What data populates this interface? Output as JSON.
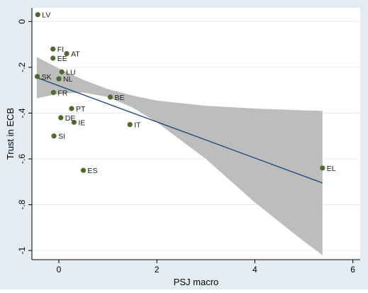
{
  "chart_data": {
    "type": "scatter",
    "title": "",
    "xlabel": "PSJ macro",
    "ylabel": "Trust in ECB",
    "xlim": [
      -0.55,
      6.15
    ],
    "ylim": [
      -1.04,
      0.06
    ],
    "x_ticks": [
      {
        "value": 0,
        "label": "0"
      },
      {
        "value": 2,
        "label": "2"
      },
      {
        "value": 4,
        "label": "4"
      },
      {
        "value": 6,
        "label": "6"
      }
    ],
    "y_ticks": [
      {
        "value": 0,
        "label": "0"
      },
      {
        "value": -0.2,
        "label": "-.2"
      },
      {
        "value": -0.4,
        "label": "-.4"
      },
      {
        "value": -0.6,
        "label": "-.6"
      },
      {
        "value": -0.8,
        "label": "-.8"
      },
      {
        "value": -1,
        "label": "-1"
      }
    ],
    "grid": "horizontal",
    "points": [
      {
        "label": "LV",
        "x": -0.43,
        "y": 0.03
      },
      {
        "label": "FI",
        "x": -0.12,
        "y": -0.12
      },
      {
        "label": "AT",
        "x": 0.16,
        "y": -0.14
      },
      {
        "label": "EE",
        "x": -0.12,
        "y": -0.16
      },
      {
        "label": "LU",
        "x": 0.06,
        "y": -0.22
      },
      {
        "label": "SK",
        "x": -0.44,
        "y": -0.24
      },
      {
        "label": "NL",
        "x": 0.0,
        "y": -0.25
      },
      {
        "label": "FR",
        "x": -0.11,
        "y": -0.31
      },
      {
        "label": "BE",
        "x": 1.05,
        "y": -0.33
      },
      {
        "label": "PT",
        "x": 0.26,
        "y": -0.38
      },
      {
        "label": "DE",
        "x": 0.04,
        "y": -0.42
      },
      {
        "label": "IE",
        "x": 0.31,
        "y": -0.44
      },
      {
        "label": "IT",
        "x": 1.45,
        "y": -0.45
      },
      {
        "label": "SI",
        "x": -0.1,
        "y": -0.5
      },
      {
        "label": "ES",
        "x": 0.5,
        "y": -0.65
      },
      {
        "label": "EL",
        "x": 5.38,
        "y": -0.64
      }
    ],
    "fit_line": {
      "x": [
        -0.45,
        5.38
      ],
      "y": [
        -0.245,
        -0.705
      ]
    },
    "ci_band": {
      "x": [
        -0.45,
        0.0,
        0.5,
        1.0,
        1.5,
        2.0,
        3.0,
        4.0,
        5.0,
        5.38
      ],
      "upper": [
        -0.155,
        -0.205,
        -0.255,
        -0.295,
        -0.323,
        -0.345,
        -0.368,
        -0.38,
        -0.388,
        -0.39
      ],
      "lower": [
        -0.335,
        -0.315,
        -0.31,
        -0.33,
        -0.375,
        -0.44,
        -0.6,
        -0.79,
        -0.96,
        -1.02
      ]
    },
    "colors": {
      "plot_bg": "#ffffff",
      "outer_bg": "#e4ecf1",
      "point": "#4e6b2b",
      "fit_line": "#1f4e79",
      "ci_band": "#bdbdbd",
      "grid": "#e6ebee"
    }
  }
}
